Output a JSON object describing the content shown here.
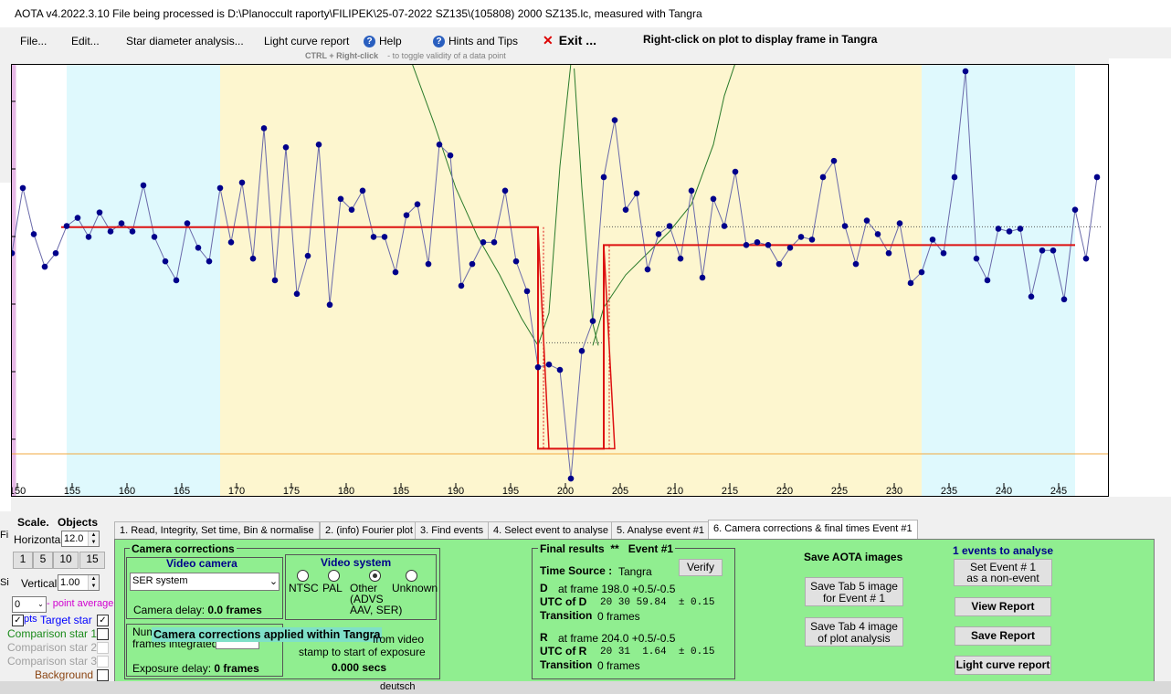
{
  "window": {
    "title": "AOTA v4.2022.3.10    File being processed is D:\\Planoccult raporty\\FILIPEK\\25-07-2022 SZ135\\(105808) 2000 SZ135.lc, measured with Tangra"
  },
  "menu": {
    "file": "File...",
    "edit": "Edit...",
    "star_diameter": "Star diameter analysis...",
    "light_curve_report": "Light curve report",
    "help": "Help",
    "hints": "Hints and Tips",
    "exit": "Exit ...",
    "right_click_hint": "Right-click on plot to display frame in Tangra",
    "ctrl_hint_key": "CTRL + Right-click",
    "ctrl_hint_text": "- to toggle validity of a data point"
  },
  "colors": {
    "outside_zone": "#dff9fd",
    "event_zone": "#fdf6cf",
    "data_line": "#6a6aaa",
    "data_point": "#00008b",
    "model": "#dd1111",
    "green_curve": "#2a7a2a",
    "baseline": "#f2a940",
    "panel_green": "#90ee90"
  },
  "chart_data": {
    "type": "scatter",
    "xlim": [
      149.5,
      249
    ],
    "ylim": [
      -0.6,
      6.9
    ],
    "x_ticks": [
      150,
      155,
      160,
      165,
      170,
      175,
      180,
      185,
      190,
      195,
      200,
      205,
      210,
      215,
      220,
      225,
      230,
      235,
      240,
      245
    ],
    "x_tick_labels": [
      "150",
      "155",
      "160",
      "165",
      "170",
      "175",
      "180",
      "185",
      "190",
      "195",
      "200",
      "205",
      "210",
      "215",
      "220",
      "225",
      "230",
      "235",
      "240",
      "245"
    ],
    "zones": [
      {
        "from": 154.5,
        "to": 168.5,
        "kind": "outside"
      },
      {
        "from": 168.5,
        "to": 232.5,
        "kind": "event"
      },
      {
        "from": 232.5,
        "to": 246.5,
        "kind": "outside"
      }
    ],
    "points": {
      "x": [
        149.5,
        150.5,
        151.5,
        152.5,
        153.5,
        154.5,
        155.5,
        156.5,
        157.5,
        158.5,
        159.5,
        160.5,
        161.5,
        162.5,
        163.5,
        164.5,
        165.5,
        166.5,
        167.5,
        168.5,
        169.5,
        170.5,
        171.5,
        172.5,
        173.5,
        174.5,
        175.5,
        176.5,
        177.5,
        178.5,
        179.5,
        180.5,
        181.5,
        182.5,
        183.5,
        184.5,
        185.5,
        186.5,
        187.5,
        188.5,
        189.5,
        190.5,
        191.5,
        192.5,
        193.5,
        194.5,
        195.5,
        196.5,
        197.5,
        198.5,
        199.5,
        200.5,
        201.5,
        202.5,
        203.5,
        204.5,
        205.5,
        206.5,
        207.5,
        208.5,
        209.5,
        210.5,
        211.5,
        212.5,
        213.5,
        214.5,
        215.5,
        216.5,
        217.5,
        218.5,
        219.5,
        220.5,
        221.5,
        222.5,
        223.5,
        224.5,
        225.5,
        226.5,
        227.5,
        228.5,
        229.5,
        230.5,
        231.5,
        232.5,
        233.5,
        234.5,
        235.5,
        236.5,
        237.5,
        238.5,
        239.5,
        240.5,
        241.5,
        242.5,
        243.5,
        244.5,
        245.5,
        246.5,
        247.5,
        248.5
      ],
      "y": [
        3.6,
        4.8,
        3.95,
        3.35,
        3.6,
        4.1,
        4.25,
        3.9,
        4.35,
        4.0,
        4.15,
        4.0,
        4.85,
        3.9,
        3.45,
        3.1,
        4.15,
        3.7,
        3.45,
        4.8,
        3.8,
        4.9,
        3.5,
        5.9,
        3.1,
        5.55,
        2.85,
        3.55,
        5.6,
        2.65,
        4.6,
        4.4,
        4.75,
        3.9,
        3.9,
        3.25,
        4.3,
        4.5,
        3.4,
        5.6,
        5.4,
        3.0,
        3.4,
        3.8,
        3.8,
        4.75,
        3.45,
        2.9,
        1.5,
        1.55,
        1.45,
        -0.55,
        1.8,
        2.35,
        5.0,
        6.05,
        4.4,
        4.7,
        3.3,
        3.95,
        4.1,
        3.5,
        4.75,
        3.15,
        4.6,
        4.1,
        5.1,
        3.75,
        3.8,
        3.75,
        3.4,
        3.7,
        3.9,
        3.85,
        5.0,
        5.3,
        4.1,
        3.4,
        4.2,
        3.95,
        3.6,
        4.15,
        3.05,
        3.25,
        3.85,
        3.6,
        5.0,
        6.95,
        3.5,
        3.1,
        4.05,
        4.0,
        4.05,
        2.8,
        3.65,
        3.65,
        2.75,
        4.4,
        3.5,
        5.0
      ],
      "invalid_x": [
        149.5
      ]
    },
    "model_levels": {
      "baseline": 4.1,
      "event_start": 168.5,
      "event_end": 232.5,
      "before": 4.08,
      "drop": 0.0,
      "after": 3.75,
      "left_edge": [
        197.5,
        198.5
      ],
      "right_edge": [
        203.5,
        204.5
      ]
    }
  },
  "tabs": [
    "1. Read, Integrity, Set time, Bin & normalise",
    "2. (info)  Fourier plot",
    "3. Find events",
    "4. Select event to analyse",
    "5. Analyse event #1",
    "6. Camera corrections & final times Event #1"
  ],
  "left": {
    "scale": "Scale.",
    "objects": "Objects",
    "horizontal_label": "Horizontal",
    "horizontal_value": "12.0",
    "zoom_buttons": [
      "1",
      "5",
      "10",
      "15"
    ],
    "vertical_label": "Vertical",
    "vertical_value": "1.00",
    "point_avg_value": "0",
    "point_avg_label": "- point average",
    "pts_label": "pts",
    "target_star": "Target star",
    "comp1": "Comparison star 1",
    "comp2": "Comparison star 2",
    "comp3": "Comparison star 3",
    "background": "Background",
    "edge_f": "Fi",
    "edge_s": "Si"
  },
  "camera": {
    "group_title": "Camera corrections",
    "video_camera_title": "Video camera",
    "camera_select": "SER system",
    "camera_delay": "Camera delay:",
    "camera_delay_val": "0.0 frames",
    "video_system_title": "Video system",
    "ntsc": "NTSC",
    "pal": "PAL",
    "other": "Other",
    "other_sub1": "(ADVS",
    "other_sub2": "AAV, SER)",
    "unknown": "Unknown",
    "num_label": "Num",
    "frames_integrated": "frames integrated",
    "applied_banner": "Camera corrections applied within Tangra",
    "from_video": "from video",
    "stamp_line": "stamp to start of exposure",
    "secs": "0.000 secs",
    "exposure_delay": "Exposure delay:",
    "exposure_delay_val": "0 frames"
  },
  "final": {
    "title": "Final results",
    "stars": "**",
    "event": "Event #1",
    "verify": "Verify",
    "time_source_label": "Time Source :",
    "time_source_value": "Tangra",
    "d_label": "D",
    "d_frame": "at frame 198.0  +0.5/-0.5",
    "utc_d_label": "UTC of D",
    "utc_d_value": "20 30 59.84  ± 0.15",
    "trans_label": "Transition",
    "trans_d": "0 frames",
    "r_label": "R",
    "r_frame": "at frame 204.0  +0.5/-0.5",
    "utc_r_label": "UTC of R",
    "utc_r_value": "20 31  1.64  ± 0.15",
    "trans_r": "0 frames"
  },
  "save": {
    "title": "Save AOTA images",
    "tab5_line1": "Save Tab 5 image",
    "tab5_line2": "for Event # 1",
    "tab4_line1": "Save Tab 4 image",
    "tab4_line2": "of plot analysis"
  },
  "events": {
    "title": "1  events to analyse",
    "set_line1": "Set Event # 1",
    "set_line2": "as a non-event",
    "view_report": "View Report",
    "save_report": "Save Report",
    "lc_report": "Light curve report"
  },
  "taskbar": {
    "deutsch": "deutsch"
  }
}
